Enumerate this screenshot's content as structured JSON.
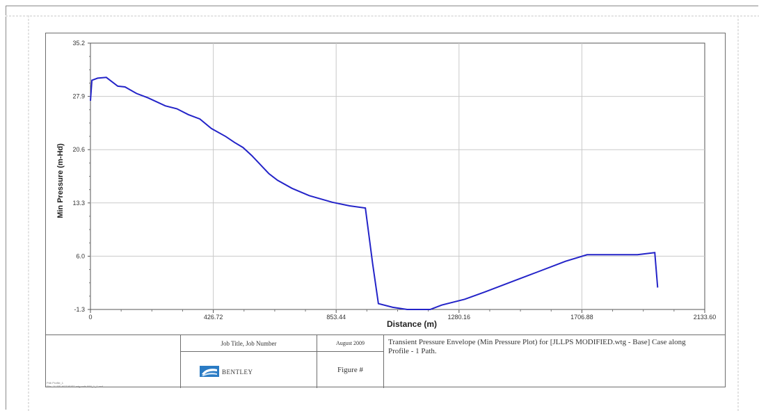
{
  "chart_data": {
    "type": "line",
    "title": "",
    "xlabel": "Distance (m)",
    "ylabel": "Min Pressure (m-Hd)",
    "xlim": [
      0,
      2133.6
    ],
    "ylim": [
      -1.3,
      35.2
    ],
    "x_ticks": [
      "0",
      "426.72",
      "853.44",
      "1280.16",
      "1706.88",
      "2133.60"
    ],
    "y_ticks": [
      "-1.3",
      "6.0",
      "13.3",
      "20.6",
      "27.9",
      "35.2"
    ],
    "grid": true,
    "line_color": "#2323c8",
    "series": [
      {
        "x": [
          0,
          5,
          25,
          55,
          95,
          120,
          160,
          200,
          260,
          300,
          340,
          380,
          420,
          470,
          500,
          530,
          560,
          620,
          650,
          700,
          760,
          840,
          900,
          955,
          980,
          1000,
          1050,
          1100,
          1180,
          1220,
          1300,
          1370,
          1450,
          1550,
          1650,
          1725,
          1750,
          1800,
          1900,
          1960,
          1970
        ],
        "y": [
          27.3,
          30.1,
          30.4,
          30.5,
          29.3,
          29.2,
          28.3,
          27.7,
          26.6,
          26.2,
          25.4,
          24.8,
          23.5,
          22.4,
          21.6,
          20.9,
          19.8,
          17.3,
          16.4,
          15.3,
          14.3,
          13.4,
          12.9,
          12.6,
          5.0,
          -0.5,
          -1.0,
          -1.3,
          -1.3,
          -0.7,
          0.1,
          1.1,
          2.3,
          3.8,
          5.3,
          6.2,
          6.2,
          6.2,
          6.2,
          6.5,
          1.7
        ]
      }
    ]
  },
  "footer": {
    "file_line1": "Pdb Profile_1",
    "file_line2": "File: JLLPS MODIFIED.wtg.wdb 888_1_1.wcf",
    "job_title": "Job Title, Job Number",
    "date": "August 2009",
    "company": "BENTLEY",
    "figure": "Figure #",
    "caption": "Transient Pressure Envelope (Min Pressure Plot) for [JLLPS MODIFIED.wtg - Base] Case along Profile - 1 Path."
  }
}
